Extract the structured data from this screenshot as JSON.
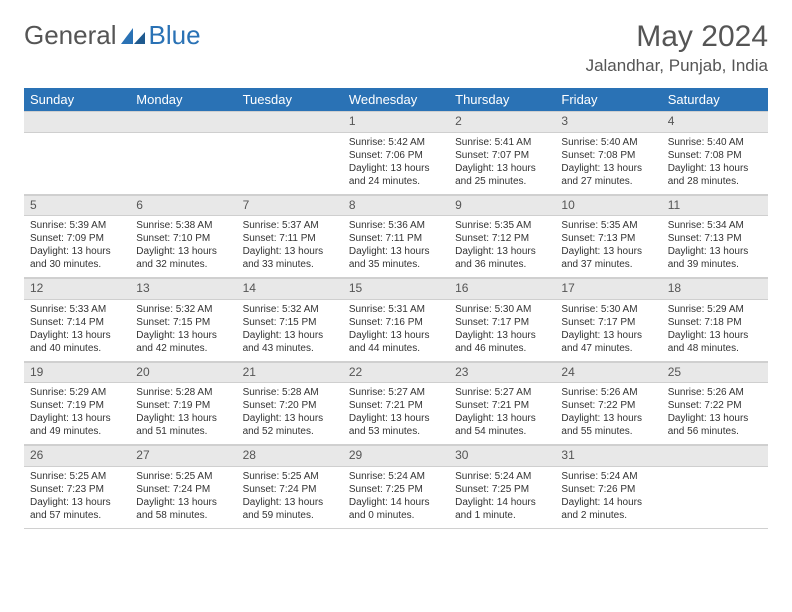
{
  "brand": {
    "part1": "General",
    "part2": "Blue"
  },
  "title": "May 2024",
  "location": "Jalandhar, Punjab, India",
  "colors": {
    "header_bg": "#2a72b5",
    "daynum_bg": "#e8e8e8",
    "text": "#333333",
    "muted": "#555555"
  },
  "weekdays": [
    "Sunday",
    "Monday",
    "Tuesday",
    "Wednesday",
    "Thursday",
    "Friday",
    "Saturday"
  ],
  "weeks": [
    [
      {
        "empty": true
      },
      {
        "empty": true
      },
      {
        "empty": true
      },
      {
        "n": "1",
        "sr": "5:42 AM",
        "ss": "7:06 PM",
        "dl": "13 hours and 24 minutes."
      },
      {
        "n": "2",
        "sr": "5:41 AM",
        "ss": "7:07 PM",
        "dl": "13 hours and 25 minutes."
      },
      {
        "n": "3",
        "sr": "5:40 AM",
        "ss": "7:08 PM",
        "dl": "13 hours and 27 minutes."
      },
      {
        "n": "4",
        "sr": "5:40 AM",
        "ss": "7:08 PM",
        "dl": "13 hours and 28 minutes."
      }
    ],
    [
      {
        "n": "5",
        "sr": "5:39 AM",
        "ss": "7:09 PM",
        "dl": "13 hours and 30 minutes."
      },
      {
        "n": "6",
        "sr": "5:38 AM",
        "ss": "7:10 PM",
        "dl": "13 hours and 32 minutes."
      },
      {
        "n": "7",
        "sr": "5:37 AM",
        "ss": "7:11 PM",
        "dl": "13 hours and 33 minutes."
      },
      {
        "n": "8",
        "sr": "5:36 AM",
        "ss": "7:11 PM",
        "dl": "13 hours and 35 minutes."
      },
      {
        "n": "9",
        "sr": "5:35 AM",
        "ss": "7:12 PM",
        "dl": "13 hours and 36 minutes."
      },
      {
        "n": "10",
        "sr": "5:35 AM",
        "ss": "7:13 PM",
        "dl": "13 hours and 37 minutes."
      },
      {
        "n": "11",
        "sr": "5:34 AM",
        "ss": "7:13 PM",
        "dl": "13 hours and 39 minutes."
      }
    ],
    [
      {
        "n": "12",
        "sr": "5:33 AM",
        "ss": "7:14 PM",
        "dl": "13 hours and 40 minutes."
      },
      {
        "n": "13",
        "sr": "5:32 AM",
        "ss": "7:15 PM",
        "dl": "13 hours and 42 minutes."
      },
      {
        "n": "14",
        "sr": "5:32 AM",
        "ss": "7:15 PM",
        "dl": "13 hours and 43 minutes."
      },
      {
        "n": "15",
        "sr": "5:31 AM",
        "ss": "7:16 PM",
        "dl": "13 hours and 44 minutes."
      },
      {
        "n": "16",
        "sr": "5:30 AM",
        "ss": "7:17 PM",
        "dl": "13 hours and 46 minutes."
      },
      {
        "n": "17",
        "sr": "5:30 AM",
        "ss": "7:17 PM",
        "dl": "13 hours and 47 minutes."
      },
      {
        "n": "18",
        "sr": "5:29 AM",
        "ss": "7:18 PM",
        "dl": "13 hours and 48 minutes."
      }
    ],
    [
      {
        "n": "19",
        "sr": "5:29 AM",
        "ss": "7:19 PM",
        "dl": "13 hours and 49 minutes."
      },
      {
        "n": "20",
        "sr": "5:28 AM",
        "ss": "7:19 PM",
        "dl": "13 hours and 51 minutes."
      },
      {
        "n": "21",
        "sr": "5:28 AM",
        "ss": "7:20 PM",
        "dl": "13 hours and 52 minutes."
      },
      {
        "n": "22",
        "sr": "5:27 AM",
        "ss": "7:21 PM",
        "dl": "13 hours and 53 minutes."
      },
      {
        "n": "23",
        "sr": "5:27 AM",
        "ss": "7:21 PM",
        "dl": "13 hours and 54 minutes."
      },
      {
        "n": "24",
        "sr": "5:26 AM",
        "ss": "7:22 PM",
        "dl": "13 hours and 55 minutes."
      },
      {
        "n": "25",
        "sr": "5:26 AM",
        "ss": "7:22 PM",
        "dl": "13 hours and 56 minutes."
      }
    ],
    [
      {
        "n": "26",
        "sr": "5:25 AM",
        "ss": "7:23 PM",
        "dl": "13 hours and 57 minutes."
      },
      {
        "n": "27",
        "sr": "5:25 AM",
        "ss": "7:24 PM",
        "dl": "13 hours and 58 minutes."
      },
      {
        "n": "28",
        "sr": "5:25 AM",
        "ss": "7:24 PM",
        "dl": "13 hours and 59 minutes."
      },
      {
        "n": "29",
        "sr": "5:24 AM",
        "ss": "7:25 PM",
        "dl": "14 hours and 0 minutes."
      },
      {
        "n": "30",
        "sr": "5:24 AM",
        "ss": "7:25 PM",
        "dl": "14 hours and 1 minute."
      },
      {
        "n": "31",
        "sr": "5:24 AM",
        "ss": "7:26 PM",
        "dl": "14 hours and 2 minutes."
      },
      {
        "empty": true
      }
    ]
  ],
  "labels": {
    "sunrise": "Sunrise: ",
    "sunset": "Sunset: ",
    "daylight": "Daylight: "
  }
}
